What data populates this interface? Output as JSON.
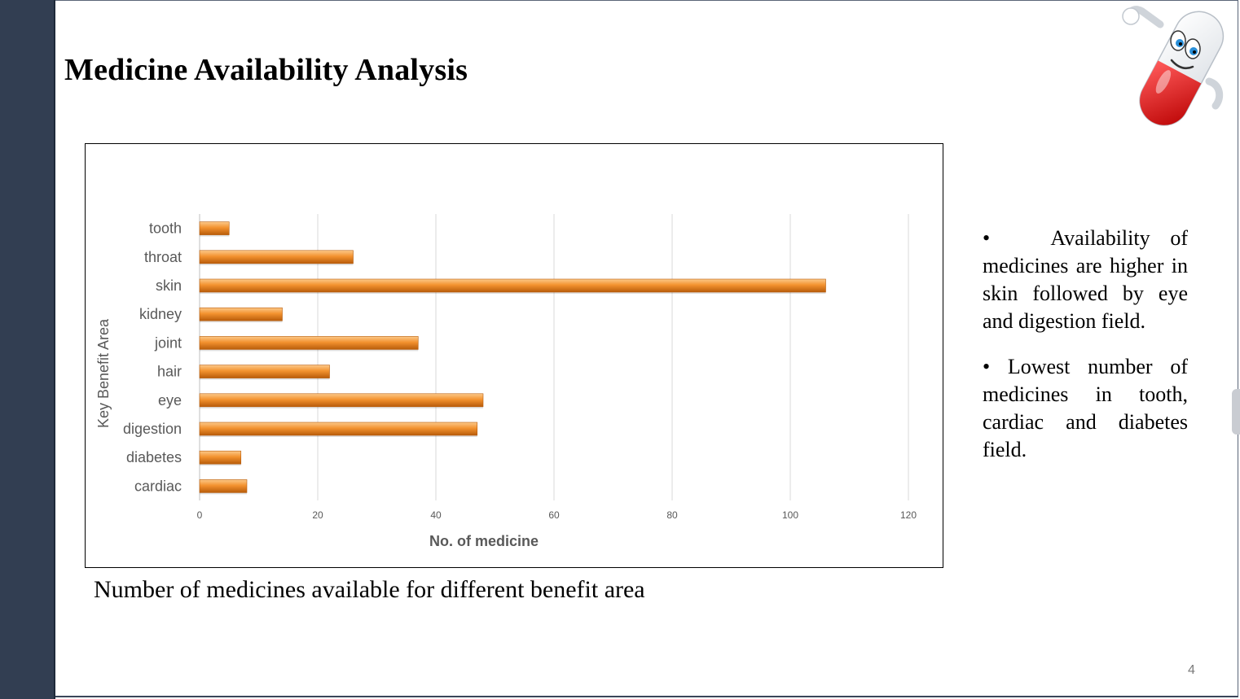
{
  "slide": {
    "title": "Medicine Availability Analysis",
    "caption": "Number of medicines available for different benefit area",
    "page_number": "4",
    "bullets": [
      "•   Availability of medicines are higher in skin followed by eye and digestion field.",
      "• Lowest number of medicines in tooth, cardiac and diabetes field."
    ]
  },
  "colors": {
    "bar_top": "#fcc98a",
    "bar_mid": "#f3922f",
    "bar_bottom": "#b85c0a",
    "grid": "#d9d9d9",
    "tick_text": "#595959",
    "band": "#323e52"
  },
  "icons": {
    "mascot": "pill-mascot-icon"
  },
  "chart_data": {
    "type": "bar",
    "orientation": "horizontal",
    "title": "",
    "categories": [
      "tooth",
      "throat",
      "skin",
      "kidney",
      "joint",
      "hair",
      "eye",
      "digestion",
      "diabetes",
      "cardiac"
    ],
    "values": [
      5,
      26,
      106,
      14,
      37,
      22,
      48,
      47,
      7,
      8
    ],
    "xlabel": "No. of medicine",
    "ylabel": "Key Benefit Area",
    "xlim": [
      0,
      120
    ],
    "xticks": [
      0,
      20,
      40,
      60,
      80,
      100,
      120
    ],
    "grid": "vertical",
    "legend": "none"
  }
}
